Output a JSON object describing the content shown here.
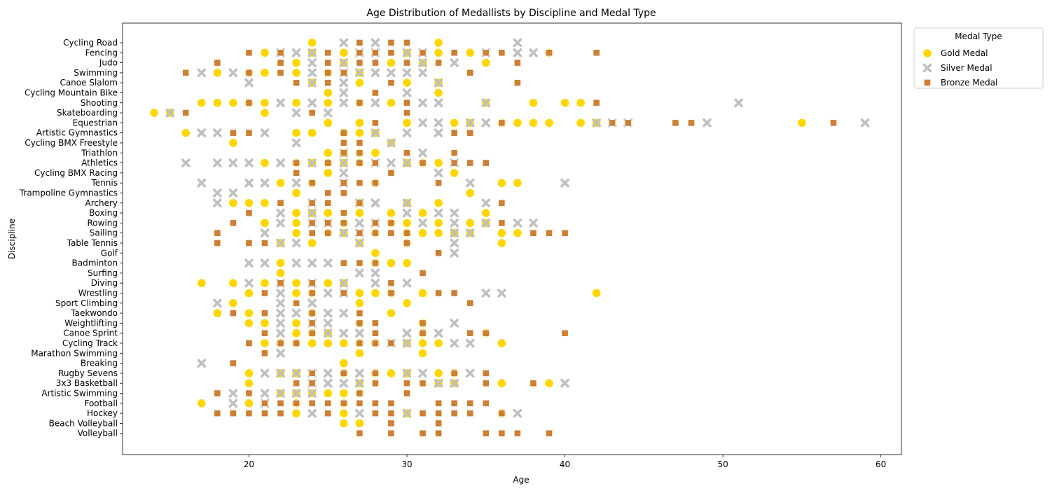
{
  "chart_data": {
    "type": "scatter",
    "title": "Age Distribution of Medallists by Discipline and Medal Type",
    "xlabel": "Age",
    "ylabel": "Discipline",
    "xlim": [
      12,
      61.3
    ],
    "x_ticks": [
      20,
      30,
      40,
      50,
      60
    ],
    "grid": false,
    "legend": {
      "title": "Medal Type",
      "placement": "outside-top-right"
    },
    "categories": [
      "Cycling Road",
      "Fencing",
      "Judo",
      "Swimming",
      "Canoe Slalom",
      "Cycling Mountain Bike",
      "Shooting",
      "Skateboarding",
      "Equestrian",
      "Artistic Gymnastics",
      "Cycling BMX Freestyle",
      "Triathlon",
      "Athletics",
      "Cycling BMX Racing",
      "Tennis",
      "Trampoline Gymnastics",
      "Archery",
      "Boxing",
      "Rowing",
      "Sailing",
      "Table Tennis",
      "Golf",
      "Badminton",
      "Surfing",
      "Diving",
      "Wrestling",
      "Sport Climbing",
      "Taekwondo",
      "Weightlifting",
      "Canoe Sprint",
      "Cycling Track",
      "Marathon Swimming",
      "Breaking",
      "Rugby Sevens",
      "3x3 Basketball",
      "Artistic Swimming",
      "Football",
      "Hockey",
      "Beach Volleyball",
      "Volleyball"
    ],
    "series": [
      {
        "name": "Gold Medal",
        "marker": "circle",
        "color": "#ffd700",
        "points": {
          "Cycling Road": [
            24,
            32
          ],
          "Fencing": [
            21,
            24,
            26,
            30,
            32,
            34,
            39
          ],
          "Judo": [
            23,
            26,
            29,
            31,
            35
          ],
          "Swimming": [
            18,
            20,
            21,
            23,
            25,
            27
          ],
          "Canoe Slalom": [
            24,
            27,
            30,
            32
          ],
          "Cycling Mountain Bike": [
            25,
            32
          ],
          "Shooting": [
            17,
            18,
            19,
            20,
            21,
            23,
            25,
            27,
            29,
            35,
            38,
            40,
            41
          ],
          "Skateboarding": [
            14,
            15,
            21
          ],
          "Equestrian": [
            25,
            27,
            30,
            33,
            34,
            36,
            37,
            38,
            39,
            41,
            42,
            55
          ],
          "Artistic Gymnastics": [
            16,
            23,
            24,
            26,
            27,
            28
          ],
          "Cycling BMX Freestyle": [
            19,
            29
          ],
          "Triathlon": [
            25,
            26,
            27,
            28
          ],
          "Athletics": [
            21,
            23,
            24,
            25,
            26,
            27,
            30,
            31,
            32
          ],
          "Cycling BMX Racing": [
            25,
            33
          ],
          "Tennis": [
            22,
            24,
            28,
            36,
            37
          ],
          "Trampoline Gymnastics": [
            23,
            34
          ],
          "Archery": [
            19,
            20,
            21,
            27,
            30,
            32
          ],
          "Boxing": [
            23,
            24,
            25,
            27,
            29,
            31,
            35
          ],
          "Rowing": [
            21,
            23,
            26,
            29,
            30,
            32,
            34,
            35
          ],
          "Sailing": [
            23,
            25,
            26,
            28,
            30,
            31,
            32,
            33,
            34,
            36,
            37
          ],
          "Table Tennis": [
            22,
            24,
            27,
            30,
            36
          ],
          "Golf": [
            28
          ],
          "Badminton": [
            22,
            28,
            29,
            30
          ],
          "Surfing": [
            22
          ],
          "Diving": [
            17,
            19,
            21,
            23,
            25,
            26
          ],
          "Wrestling": [
            20,
            23,
            24,
            27,
            28,
            29,
            31,
            42
          ],
          "Sport Climbing": [
            19,
            27,
            30
          ],
          "Taekwondo": [
            18,
            20,
            24,
            29
          ],
          "Weightlifting": [
            20,
            21,
            23,
            27,
            31
          ],
          "Canoe Sprint": [
            23,
            24,
            25,
            31,
            35
          ],
          "Cycling Track": [
            21,
            22,
            23,
            24,
            25,
            26,
            27,
            28,
            30,
            31,
            32,
            36
          ],
          "Marathon Swimming": [
            27,
            31
          ],
          "Breaking": [
            26
          ],
          "Rugby Sevens": [
            20,
            22,
            23,
            26,
            28,
            29,
            30,
            32,
            33
          ],
          "3x3 Basketball": [
            20,
            27,
            32,
            33,
            36,
            39
          ],
          "Artistic Swimming": [
            22,
            23,
            24,
            25,
            26,
            27
          ],
          "Football": [
            17,
            20,
            23,
            26
          ],
          "Hockey": [
            23,
            26,
            30,
            36
          ],
          "Beach Volleyball": [
            26,
            27
          ],
          "Volleyball": []
        }
      },
      {
        "name": "Silver Medal",
        "marker": "x",
        "color": "#c0c0c0",
        "points": {
          "Cycling Road": [
            26,
            28,
            37
          ],
          "Fencing": [
            22,
            23,
            24,
            27,
            28,
            30,
            31,
            35,
            37,
            38
          ],
          "Judo": [
            24,
            26,
            31,
            33
          ],
          "Swimming": [
            17,
            19,
            24,
            26,
            27,
            28,
            29,
            30,
            31
          ],
          "Canoe Slalom": [
            20,
            24,
            26,
            32
          ],
          "Cycling Mountain Bike": [
            26,
            30
          ],
          "Shooting": [
            22,
            24,
            26,
            28,
            31,
            32,
            35,
            51
          ],
          "Skateboarding": [
            15,
            23,
            25
          ],
          "Equestrian": [
            31,
            32,
            34,
            35,
            42,
            43,
            44,
            49,
            59
          ],
          "Artistic Gymnastics": [
            17,
            18,
            21,
            28,
            30,
            32
          ],
          "Cycling BMX Freestyle": [
            23,
            29
          ],
          "Triathlon": [
            26,
            31
          ],
          "Athletics": [
            16,
            18,
            19,
            20,
            22,
            24,
            26,
            28,
            29,
            30,
            33
          ],
          "Cycling BMX Racing": [
            26,
            32
          ],
          "Tennis": [
            17,
            20,
            21,
            23,
            26,
            34,
            40
          ],
          "Trampoline Gymnastics": [
            18,
            19
          ],
          "Archery": [
            18,
            24,
            27,
            28,
            30,
            35
          ],
          "Boxing": [
            22,
            24,
            30,
            32,
            33
          ],
          "Rowing": [
            22,
            24,
            25,
            27,
            28,
            31,
            33,
            35,
            37,
            38
          ],
          "Sailing": [
            21,
            26,
            27,
            33,
            34
          ],
          "Table Tennis": [
            22,
            23,
            27,
            33
          ],
          "Golf": [
            33
          ],
          "Badminton": [
            20,
            21,
            23,
            24,
            25
          ],
          "Surfing": [
            27,
            28
          ],
          "Diving": [
            20,
            22,
            24,
            26,
            28,
            30
          ],
          "Wrestling": [
            22,
            25,
            26,
            35,
            36
          ],
          "Sport Climbing": [
            18,
            22,
            24
          ],
          "Taekwondo": [
            22,
            23,
            25,
            26
          ],
          "Weightlifting": [
            22,
            24,
            25,
            33
          ],
          "Canoe Sprint": [
            22,
            25,
            26,
            27,
            30,
            32
          ],
          "Cycling Track": [
            29,
            30,
            33,
            34
          ],
          "Marathon Swimming": [
            22
          ],
          "Breaking": [
            17
          ],
          "Rugby Sevens": [
            21,
            22,
            23,
            24,
            25,
            27,
            30,
            31,
            34
          ],
          "3x3 Basketball": [
            24,
            25,
            26,
            27,
            32,
            33,
            40
          ],
          "Artistic Swimming": [
            19,
            21,
            22,
            23,
            24
          ],
          "Football": [
            19,
            21
          ],
          "Hockey": [
            24,
            27,
            30,
            37
          ],
          "Beach Volleyball": [],
          "Volleyball": []
        }
      },
      {
        "name": "Bronze Medal",
        "marker": "square",
        "color": "#cd7f32",
        "points": {
          "Cycling Road": [
            27,
            29,
            30
          ],
          "Fencing": [
            20,
            22,
            25,
            27,
            28,
            29,
            31,
            33,
            35,
            36,
            39,
            42
          ],
          "Judo": [
            18,
            22,
            25,
            27,
            28,
            30,
            32,
            37
          ],
          "Swimming": [
            16,
            20,
            22,
            25,
            26,
            34
          ],
          "Canoe Slalom": [
            23,
            25,
            29,
            37
          ],
          "Cycling Mountain Bike": [
            28
          ],
          "Shooting": [
            20,
            27,
            30,
            42
          ],
          "Skateboarding": [
            16,
            24,
            30
          ],
          "Equestrian": [
            28,
            36,
            43,
            44,
            47,
            48,
            57
          ],
          "Artistic Gymnastics": [
            19,
            20,
            26,
            33,
            34
          ],
          "Cycling BMX Freestyle": [
            26,
            27
          ],
          "Triathlon": [
            26,
            27,
            30,
            33
          ],
          "Athletics": [
            23,
            25,
            27,
            28,
            31,
            33,
            34,
            35
          ],
          "Cycling BMX Racing": [
            23,
            29
          ],
          "Tennis": [
            24,
            26,
            27,
            28,
            32
          ],
          "Trampoline Gymnastics": [
            25,
            26
          ],
          "Archery": [
            22,
            24,
            25,
            27,
            36
          ],
          "Boxing": [
            20,
            26
          ],
          "Rowing": [
            19,
            24,
            25,
            26,
            28,
            29,
            36
          ],
          "Sailing": [
            18,
            24,
            25,
            27,
            28,
            29,
            30,
            38,
            39,
            40
          ],
          "Table Tennis": [
            18,
            20,
            21,
            30
          ],
          "Golf": [
            32
          ],
          "Badminton": [
            26,
            27,
            28
          ],
          "Surfing": [
            31
          ],
          "Diving": [
            22,
            24,
            29
          ],
          "Wrestling": [
            21,
            24,
            26,
            29,
            32,
            33
          ],
          "Sport Climbing": [
            23,
            34
          ],
          "Taekwondo": [
            19,
            21,
            24,
            27
          ],
          "Weightlifting": [
            24,
            27,
            28,
            31
          ],
          "Canoe Sprint": [
            21,
            24,
            28,
            31,
            34,
            35,
            40
          ],
          "Cycling Track": [
            20,
            22,
            23,
            27,
            28,
            29
          ],
          "Marathon Swimming": [
            21
          ],
          "Breaking": [
            19
          ],
          "Rugby Sevens": [
            24,
            26,
            28,
            33,
            35
          ],
          "3x3 Basketball": [
            23,
            24,
            28,
            30,
            31,
            35,
            38
          ],
          "Artistic Swimming": [
            18,
            20,
            27,
            30
          ],
          "Football": [
            21,
            22,
            23,
            24,
            25,
            26,
            27,
            28,
            29,
            32,
            33,
            34,
            35
          ],
          "Hockey": [
            18,
            19,
            20,
            21,
            22,
            25,
            28,
            29,
            31,
            32,
            33,
            34,
            36
          ],
          "Beach Volleyball": [
            29,
            32
          ],
          "Volleyball": [
            27,
            29,
            31,
            32,
            35,
            36,
            37,
            39
          ]
        }
      }
    ]
  }
}
